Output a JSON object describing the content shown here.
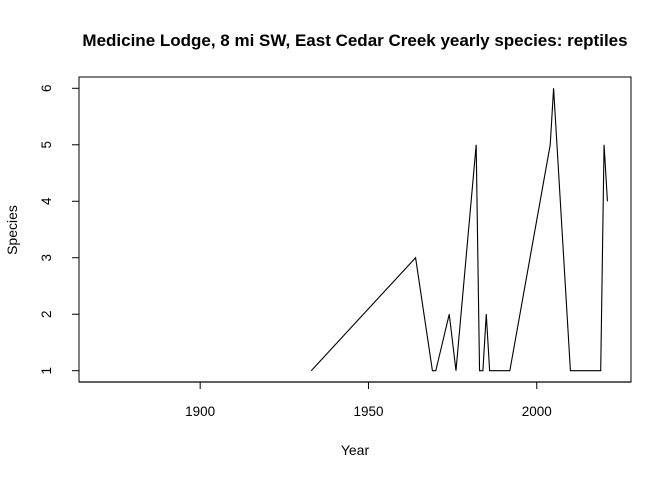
{
  "chart_data": {
    "type": "line",
    "title": "Medicine Lodge, 8 mi SW, East Cedar Creek yearly species: reptiles",
    "xlabel": "Year",
    "ylabel": "Species",
    "xlim": [
      1864,
      2028
    ],
    "ylim": [
      0.8,
      6.2
    ],
    "xticks": [
      1900,
      1950,
      2000
    ],
    "yticks": [
      1,
      2,
      3,
      4,
      5,
      6
    ],
    "grid": false,
    "series": [
      {
        "x": [
          1933,
          1964,
          1969,
          1970,
          1974,
          1976,
          1982,
          1983,
          1984,
          1985,
          1986,
          1992,
          2004,
          2005,
          2010,
          2019,
          2020,
          2021
        ],
        "y": [
          1,
          3,
          1,
          1,
          2,
          1,
          5,
          1,
          1,
          2,
          1,
          1,
          5,
          6,
          1,
          1,
          5,
          4
        ]
      }
    ],
    "flat_segment": {
      "x": [
        1864,
        2028
      ],
      "y": 0.8
    }
  }
}
